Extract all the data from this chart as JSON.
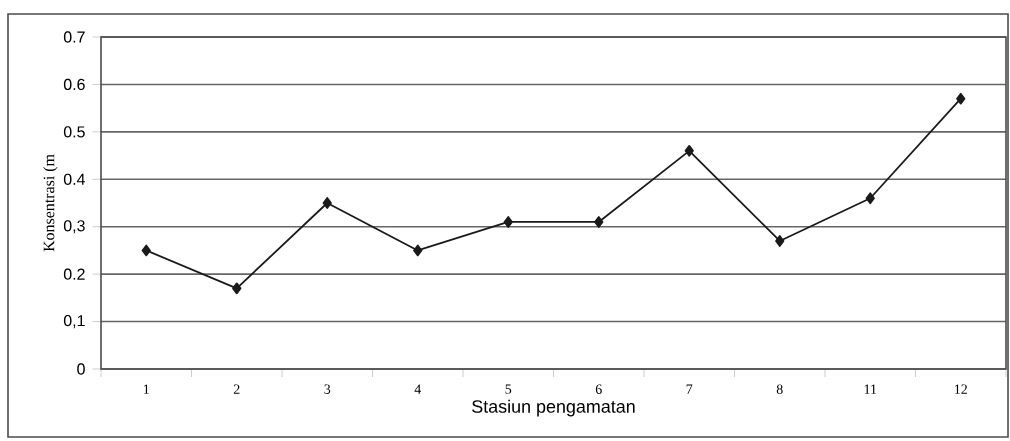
{
  "chart_data": {
    "type": "line",
    "xlabel": "Stasiun pengamatan",
    "ylabel": "Konsentrasi (m",
    "categories": [
      "1",
      "2",
      "3",
      "4",
      "5",
      "6",
      "7",
      "8",
      "11",
      "12"
    ],
    "series": [
      {
        "color": "#1a1a1a",
        "values": [
          0.25,
          0.17,
          0.35,
          0.25,
          0.31,
          0.31,
          0.46,
          0.27,
          0.36,
          0.57
        ]
      }
    ],
    "ylim": [
      0,
      0.7
    ],
    "yticks": [
      0,
      {
        "value": 0.1,
        "label": "0,1"
      },
      0.2,
      {
        "value": 0.3,
        "label": "0,3"
      },
      0.4,
      0.5,
      0.6,
      0.7
    ],
    "grid": "y",
    "marker": "diamond",
    "line_style": "solid"
  }
}
